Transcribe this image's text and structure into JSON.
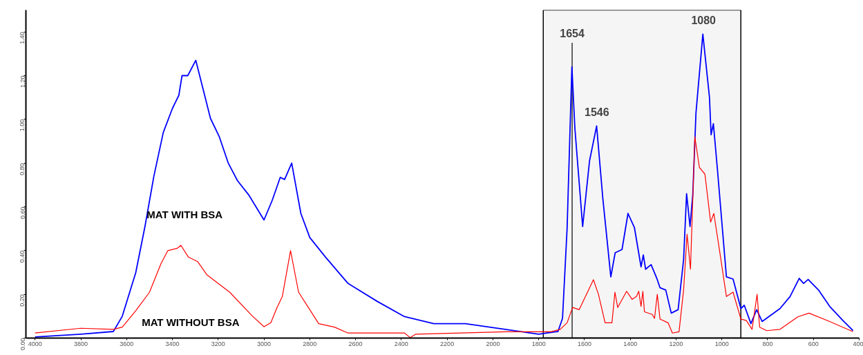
{
  "chart_data": {
    "type": "line",
    "xlim": [
      4040,
      400
    ],
    "ylim": [
      0,
      1.5
    ],
    "xticks": [
      4000,
      3800,
      3600,
      3400,
      3200,
      3000,
      2800,
      2600,
      2400,
      2200,
      2000,
      1800,
      1600,
      1400,
      1200,
      1000,
      800,
      600,
      400
    ],
    "yticks": [
      {
        "value": 0,
        "label": "0.00"
      },
      {
        "value": 0.2,
        "label": "0.20"
      },
      {
        "value": 0.4,
        "label": "0.40"
      },
      {
        "value": 0.6,
        "label": "0.60"
      },
      {
        "value": 0.8,
        "label": "0.80"
      },
      {
        "value": 1.0,
        "label": "1.00"
      },
      {
        "value": 1.2,
        "label": "1.20"
      },
      {
        "value": 1.4,
        "label": "1.40"
      }
    ],
    "grid": false,
    "marker": "none",
    "line_style": "solid",
    "series": [
      {
        "name": "MAT WITH BSA",
        "color": "#0000ff",
        "x": [
          4000,
          3800,
          3658,
          3619,
          3560,
          3520,
          3481,
          3440,
          3400,
          3372,
          3358,
          3333,
          3298,
          3264,
          3234,
          3195,
          3156,
          3116,
          3067,
          3000,
          2964,
          2929,
          2910,
          2879,
          2839,
          2800,
          2731,
          2633,
          2504,
          2386,
          2258,
          2120,
          1941,
          1800,
          1726,
          1716,
          1696,
          1676,
          1655,
          1642,
          1608,
          1578,
          1547,
          1520,
          1485,
          1466,
          1436,
          1410,
          1382,
          1353,
          1343,
          1333,
          1309,
          1284,
          1270,
          1245,
          1221,
          1191,
          1167,
          1154,
          1139,
          1127,
          1113,
          1083,
          1054,
          1047,
          1037,
          1020,
          980,
          951,
          917,
          902,
          873,
          848,
          824,
          746,
          702,
          662,
          643,
          623,
          578,
          529,
          471,
          427
        ],
        "values": [
          0.005,
          0.018,
          0.03,
          0.1,
          0.3,
          0.51,
          0.74,
          0.94,
          1.05,
          1.11,
          1.2,
          1.2,
          1.27,
          1.13,
          1.005,
          0.92,
          0.8,
          0.72,
          0.655,
          0.54,
          0.63,
          0.735,
          0.725,
          0.8,
          0.57,
          0.46,
          0.37,
          0.25,
          0.167,
          0.098,
          0.066,
          0.066,
          0.039,
          0.018,
          0.029,
          0.03,
          0.09,
          0.5,
          1.24,
          0.96,
          0.51,
          0.81,
          0.97,
          0.64,
          0.28,
          0.39,
          0.405,
          0.57,
          0.506,
          0.326,
          0.38,
          0.315,
          0.336,
          0.273,
          0.23,
          0.22,
          0.114,
          0.13,
          0.36,
          0.66,
          0.51,
          0.655,
          1.03,
          1.39,
          1.1,
          0.93,
          0.98,
          0.78,
          0.28,
          0.27,
          0.135,
          0.15,
          0.066,
          0.13,
          0.076,
          0.135,
          0.19,
          0.273,
          0.25,
          0.268,
          0.22,
          0.145,
          0.08,
          0.034
        ]
      },
      {
        "name": "MAT WITHOUT BSA",
        "color": "#ff0000",
        "x": [
          4000,
          3800,
          3658,
          3619,
          3560,
          3500,
          3450,
          3420,
          3380,
          3363,
          3330,
          3290,
          3250,
          3150,
          3050,
          3000,
          2970,
          2945,
          2920,
          2884,
          2849,
          2800,
          2761,
          2692,
          2633,
          2386,
          2361,
          2337,
          1943,
          1746,
          1706,
          1676,
          1652,
          1623,
          1561,
          1539,
          1510,
          1480,
          1467,
          1455,
          1416,
          1392,
          1373,
          1363,
          1353,
          1345,
          1338,
          1304,
          1294,
          1282,
          1270,
          1235,
          1216,
          1187,
          1167,
          1152,
          1137,
          1118,
          1098,
          1074,
          1049,
          1035,
          1010,
          980,
          951,
          917,
          893,
          868,
          846,
          835,
          804,
          746,
          667,
          619,
          529,
          427
        ],
        "values": [
          0.023,
          0.045,
          0.04,
          0.05,
          0.125,
          0.21,
          0.34,
          0.4,
          0.41,
          0.424,
          0.37,
          0.35,
          0.29,
          0.21,
          0.1,
          0.052,
          0.07,
          0.135,
          0.19,
          0.4,
          0.21,
          0.13,
          0.066,
          0.05,
          0.023,
          0.023,
          0.002,
          0.018,
          0.029,
          0.029,
          0.04,
          0.07,
          0.14,
          0.13,
          0.267,
          0.2,
          0.07,
          0.07,
          0.21,
          0.14,
          0.214,
          0.177,
          0.19,
          0.214,
          0.145,
          0.214,
          0.12,
          0.108,
          0.09,
          0.2,
          0.087,
          0.07,
          0.023,
          0.029,
          0.22,
          0.475,
          0.315,
          0.92,
          0.78,
          0.75,
          0.53,
          0.57,
          0.4,
          0.19,
          0.21,
          0.087,
          0.08,
          0.04,
          0.2,
          0.05,
          0.034,
          0.04,
          0.098,
          0.114,
          0.076,
          0.029
        ]
      }
    ],
    "bands": [
      {
        "axis": "x",
        "from": 1780,
        "to": 917,
        "label": null,
        "color": "#000000"
      }
    ],
    "ref_lines": [
      {
        "axis": "x",
        "value": 1654,
        "label": "1654",
        "color": "#000000"
      }
    ],
    "annotations": [
      {
        "text": "1546",
        "x": 1546,
        "y": 0.97
      },
      {
        "text": "1080",
        "x": 1080,
        "y": 1.39
      }
    ]
  }
}
